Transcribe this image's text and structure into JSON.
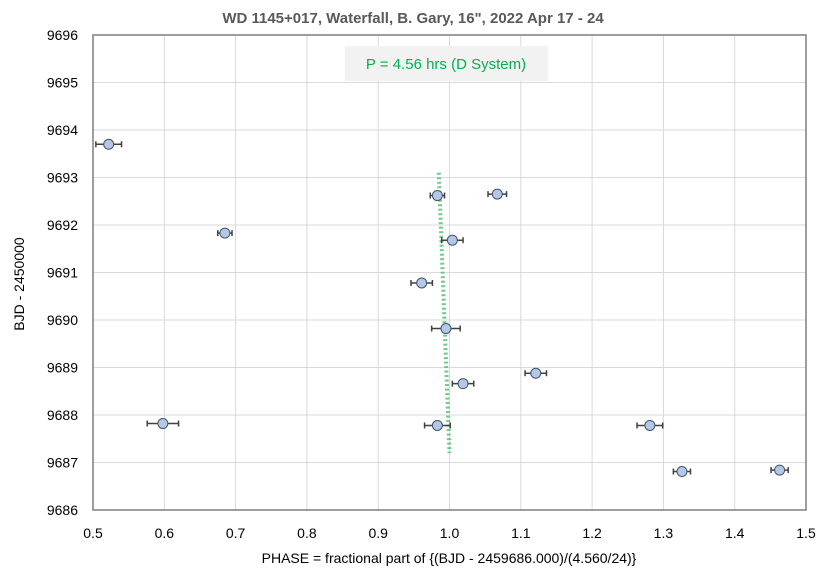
{
  "chart_data": {
    "type": "scatter",
    "title": "WD 1145+017, Waterfall, B. Gary, 16\", 2022 Apr 17 - 24",
    "xlabel": "PHASE = fractional part of {(BJD - 2459686.000)/(4.560/24)}",
    "ylabel": "BJD - 2450000",
    "xlim": [
      0.5,
      1.5
    ],
    "ylim": [
      9686,
      9696
    ],
    "xticks": [
      "0.5",
      "0.6",
      "0.7",
      "0.8",
      "0.9",
      "1.0",
      "1.1",
      "1.2",
      "1.3",
      "1.4",
      "1.5"
    ],
    "yticks": [
      "9686",
      "9687",
      "9688",
      "9689",
      "9690",
      "9691",
      "9692",
      "9693",
      "9694",
      "9695",
      "9696"
    ],
    "grid": true,
    "annotation": "P = 4.56 hrs (D System)",
    "points": [
      {
        "x": 0.522,
        "y": 9693.7,
        "xerr": 0.018
      },
      {
        "x": 0.983,
        "y": 9692.62,
        "xerr": 0.01
      },
      {
        "x": 1.067,
        "y": 9692.65,
        "xerr": 0.013
      },
      {
        "x": 0.685,
        "y": 9691.83,
        "xerr": 0.01
      },
      {
        "x": 1.004,
        "y": 9691.68,
        "xerr": 0.015
      },
      {
        "x": 0.961,
        "y": 9690.78,
        "xerr": 0.015
      },
      {
        "x": 0.995,
        "y": 9689.82,
        "xerr": 0.02
      },
      {
        "x": 1.121,
        "y": 9688.88,
        "xerr": 0.015
      },
      {
        "x": 1.019,
        "y": 9688.66,
        "xerr": 0.015
      },
      {
        "x": 0.598,
        "y": 9687.82,
        "xerr": 0.022
      },
      {
        "x": 0.983,
        "y": 9687.78,
        "xerr": 0.018
      },
      {
        "x": 1.281,
        "y": 9687.78,
        "xerr": 0.018
      },
      {
        "x": 1.326,
        "y": 9686.81,
        "xerr": 0.012
      },
      {
        "x": 1.463,
        "y": 9686.84,
        "xerr": 0.012
      }
    ],
    "trend_line": {
      "x": [
        0.985,
        1.0
      ],
      "y": [
        9693.1,
        9687.2
      ],
      "style": "dotted",
      "color": "#6fc98a"
    },
    "marker_fill": "#b4c7e7",
    "marker_edge": "#44546a",
    "errorbar_color": "#404040"
  }
}
